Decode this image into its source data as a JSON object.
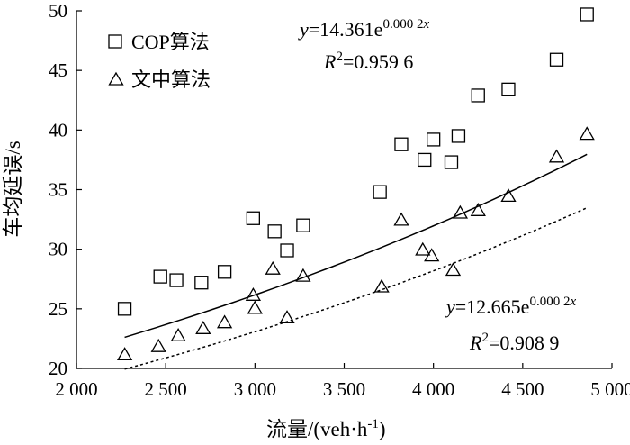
{
  "chart_data": {
    "type": "scatter",
    "xlabel": "流量/(veh·h",
    "xlabel_sup": "-1",
    "xlabel_tail": ")",
    "ylabel": "车均延误/s",
    "xlim": [
      2000,
      5000
    ],
    "ylim": [
      20,
      50
    ],
    "x_ticks": [
      2000,
      2500,
      3000,
      3500,
      4000,
      4500,
      5000
    ],
    "x_tick_labels": [
      "2 000",
      "2 500",
      "3 000",
      "3 500",
      "4 000",
      "4 500",
      "5 000"
    ],
    "y_ticks": [
      20,
      25,
      30,
      35,
      40,
      45,
      50
    ],
    "y_tick_labels": [
      "20",
      "25",
      "30",
      "35",
      "40",
      "45",
      "50"
    ],
    "grid": false,
    "legend_position": "top-left",
    "series": [
      {
        "name": "COP算法",
        "marker": "square",
        "trend": "solid",
        "trend_a": 14.361,
        "trend_b": 0.0002,
        "equation": {
          "y_var": "y",
          "eq_main": "=14.361e",
          "eq_exp": "0.000 2",
          "eq_exp_var": "x",
          "r_var": "R",
          "r_sup": "2",
          "r_val": "=0.959 6"
        },
        "points": [
          [
            2270,
            25.0
          ],
          [
            2470,
            27.7
          ],
          [
            2560,
            27.4
          ],
          [
            2700,
            27.2
          ],
          [
            2830,
            28.1
          ],
          [
            2990,
            32.6
          ],
          [
            3110,
            31.5
          ],
          [
            3180,
            29.9
          ],
          [
            3270,
            32.0
          ],
          [
            3700,
            34.8
          ],
          [
            3820,
            38.8
          ],
          [
            3950,
            37.5
          ],
          [
            4000,
            39.2
          ],
          [
            4100,
            37.3
          ],
          [
            4140,
            39.5
          ],
          [
            4250,
            42.9
          ],
          [
            4420,
            43.4
          ],
          [
            4690,
            45.9
          ],
          [
            4860,
            49.7
          ]
        ]
      },
      {
        "name": "文中算法",
        "marker": "triangle",
        "trend": "dashed",
        "trend_a": 12.665,
        "trend_b": 0.0002,
        "equation": {
          "y_var": "y",
          "eq_main": "=12.665e",
          "eq_exp": "0.000 2",
          "eq_exp_var": "x",
          "r_var": "R",
          "r_sup": "2",
          "r_val": "=0.908 9"
        },
        "points": [
          [
            2270,
            21.1
          ],
          [
            2460,
            21.8
          ],
          [
            2570,
            22.7
          ],
          [
            2710,
            23.3
          ],
          [
            2830,
            23.8
          ],
          [
            2990,
            26.1
          ],
          [
            3000,
            25.0
          ],
          [
            3100,
            28.3
          ],
          [
            3180,
            24.2
          ],
          [
            3270,
            27.7
          ],
          [
            3710,
            26.8
          ],
          [
            3820,
            32.4
          ],
          [
            3940,
            29.9
          ],
          [
            3990,
            29.4
          ],
          [
            4110,
            28.2
          ],
          [
            4150,
            33.0
          ],
          [
            4250,
            33.2
          ],
          [
            4420,
            34.4
          ],
          [
            4690,
            37.7
          ],
          [
            4860,
            39.6
          ]
        ]
      }
    ]
  }
}
